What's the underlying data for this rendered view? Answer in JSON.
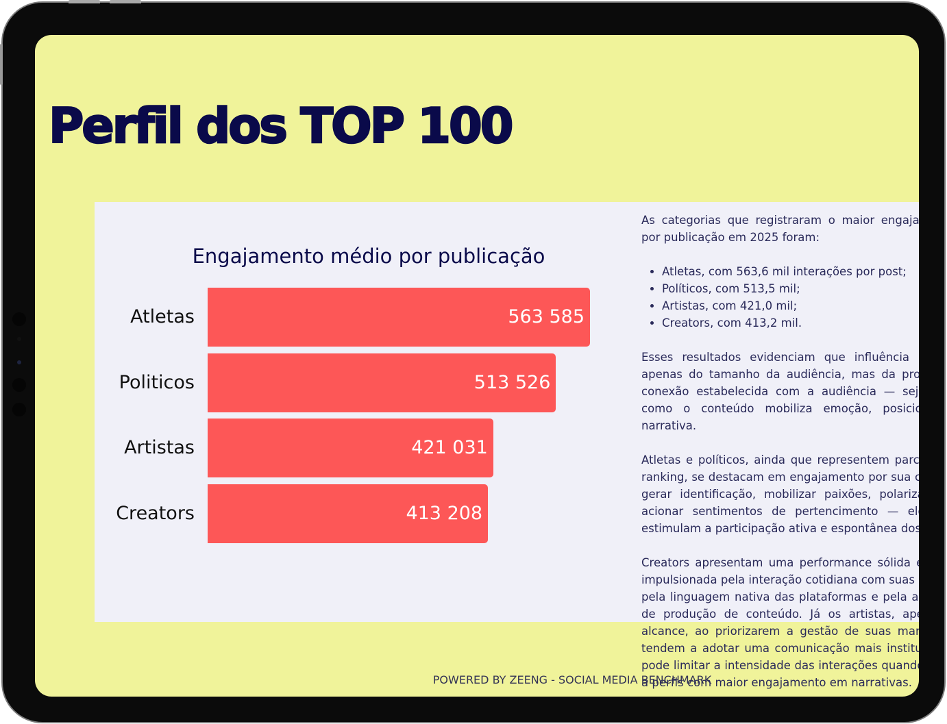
{
  "page": {
    "title": "Perfil dos TOP 100",
    "footer": "POWERED BY ZEENG - SOCIAL MEDIA BENCHMARK"
  },
  "colors": {
    "background": "#f0f39a",
    "card": "#f0f0f8",
    "bar": "#fd5757",
    "title": "#0a0a4a"
  },
  "chart_data": {
    "type": "bar",
    "orientation": "horizontal",
    "title": "Engajamento médio por publicação",
    "categories": [
      "Atletas",
      "Politicos",
      "Artistas",
      "Creators"
    ],
    "values": [
      563585,
      513526,
      421031,
      413208
    ],
    "value_labels": [
      "563 585",
      "513 526",
      "421 031",
      "413 208"
    ],
    "xlim": [
      0,
      563585
    ],
    "grid": false,
    "legend": "none"
  },
  "text": {
    "intro": "As categorias que registraram o maior engajamento médio por publicação em 2025 foram:",
    "bullets": [
      "Atletas, com 563,6 mil interações por post;",
      " Políticos, com 513,5 mil;",
      " Artistas, com 421,0 mil;",
      " Creators, com 413,2 mil."
    ],
    "para1": "Esses resultados evidenciam que influência não depende apenas do tamanho da audiência, mas da profundidade da conexão estabelecida com a audiência — seja pela forma como o conteúdo mobiliza emoção, posicionamento ou narrativa.",
    "para2": "Atletas e políticos, ainda que representem parcela menor do ranking, se destacam em engajamento por sua capacidade de gerar identificação, mobilizar paixões, polarizar debates e acionar sentimentos de pertencimento — elementos que estimulam a participação ativa e espontânea dos usuários.",
    "para3": "Creators apresentam uma performance sólida e consistente, impulsionada pela interação cotidiana com suas comunidades, pela linguagem nativa das plataformas e pela alta frequência de produção de conteúdo. Já os artistas, apesar do forte alcance, ao priorizarem a gestão de suas marcas pessoais, tendem a adotar uma comunicação mais institucional, o que pode limitar a intensidade das interações quando comparados a perfis com maior engajamento em narrativas."
  }
}
